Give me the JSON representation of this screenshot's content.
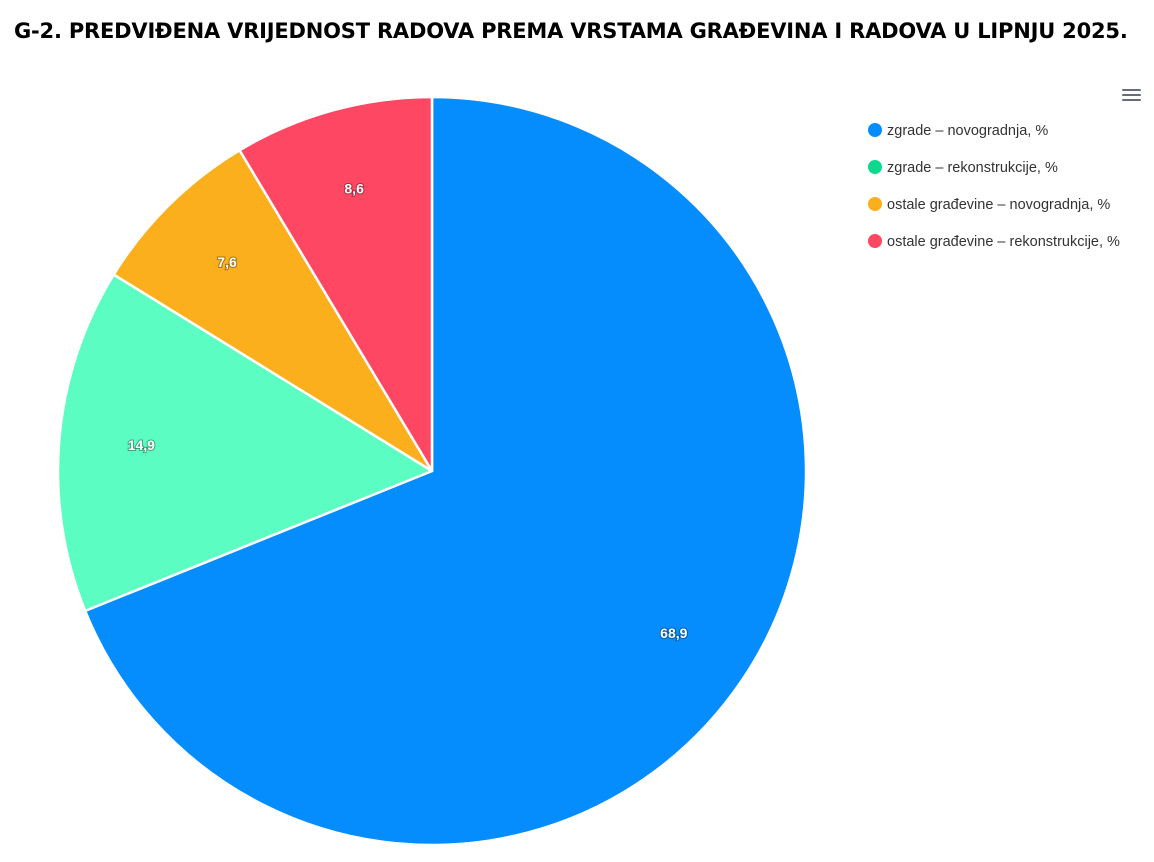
{
  "title": "G-2. PREDVIĐENA VRIJEDNOST RADOVA PREMA VRSTAMA GRAĐEVINA I RADOVA U LIPNJU 2025.",
  "menu_icon": "hamburger-menu-icon",
  "chart_data": {
    "type": "pie",
    "title": "G-2. PREDVIĐENA VRIJEDNOST RADOVA PREMA VRSTAMA GRAĐEVINA I RADOVA U LIPNJU 2025.",
    "legend_position": "right",
    "slices": [
      {
        "name": "zgrade – novogradnja, %",
        "value": 68.9,
        "label": "68,9",
        "color": "#058DFD"
      },
      {
        "name": "zgrade – rekonstrukcije, %",
        "value": 14.9,
        "label": "14,9",
        "color": "#5CFDC2",
        "legend_color": "#0CD98C"
      },
      {
        "name": "ostale građevine – novogradnja, %",
        "value": 7.6,
        "label": "7,6",
        "color": "#FCAF1C"
      },
      {
        "name": "ostale građevine – rekonstrukcije, %",
        "value": 8.6,
        "label": "8,6",
        "color": "#FE4762"
      }
    ]
  }
}
